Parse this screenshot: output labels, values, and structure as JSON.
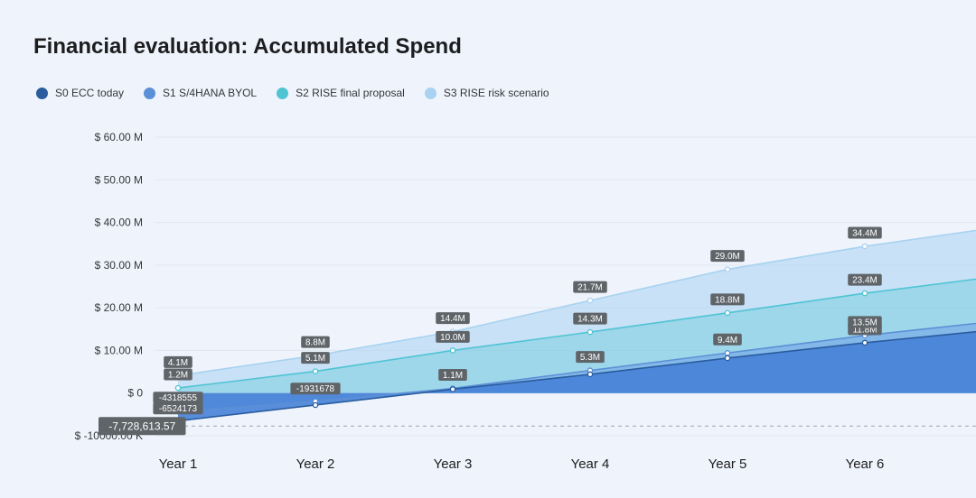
{
  "chart_data": {
    "type": "area",
    "title": "Financial evaluation: Accumulated Spend",
    "categories": [
      "Year 1",
      "Year 2",
      "Year 3",
      "Year 4",
      "Year 5",
      "Year 6"
    ],
    "y_ticks": [
      "$ 60.00 M",
      "$ 50.00 M",
      "$ 40.00 M",
      "$ 30.00 M",
      "$ 20.00 M",
      "$ 10.00 M",
      "$ 0",
      "$ -10000.00 K"
    ],
    "ylim": [
      -10,
      60
    ],
    "y_unit": "M",
    "grid": true,
    "legend_position": "top-left",
    "series": [
      {
        "name": "S0 ECC today",
        "color": "#2a5c9e",
        "values": [
          -6.52,
          -2.8,
          0.9,
          4.4,
          8.2,
          11.8
        ],
        "labels": [
          "-6524173",
          "",
          "",
          "",
          "",
          "11.8M"
        ],
        "next_value": 15.0
      },
      {
        "name": "S1 S/4HANA BYOL",
        "color": "#5b8fd6",
        "values": [
          -4.32,
          -1.93,
          1.1,
          5.3,
          9.4,
          13.5
        ],
        "labels": [
          "-4318555",
          "-1931678",
          "1.1M",
          "5.3M",
          "9.4M",
          "13.5M"
        ],
        "next_value": 17.0
      },
      {
        "name": "S2 RISE final proposal",
        "color": "#4fc4d3",
        "values": [
          1.2,
          5.1,
          10.0,
          14.3,
          18.8,
          23.4
        ],
        "labels": [
          "1.2M",
          "5.1M",
          "10.0M",
          "14.3M",
          "18.8M",
          "23.4M"
        ],
        "next_value": 27.5
      },
      {
        "name": "S3 RISE risk scenario",
        "color": "#a8d2f0",
        "values": [
          4.1,
          8.8,
          14.4,
          21.7,
          29.0,
          34.4
        ],
        "labels": [
          "4.1M",
          "8.8M",
          "14.4M",
          "21.7M",
          "29.0M",
          "34.4M"
        ],
        "next_value": 39.0
      }
    ],
    "reference_line": {
      "value": -7.73,
      "label": "-7,728,613.57"
    }
  }
}
